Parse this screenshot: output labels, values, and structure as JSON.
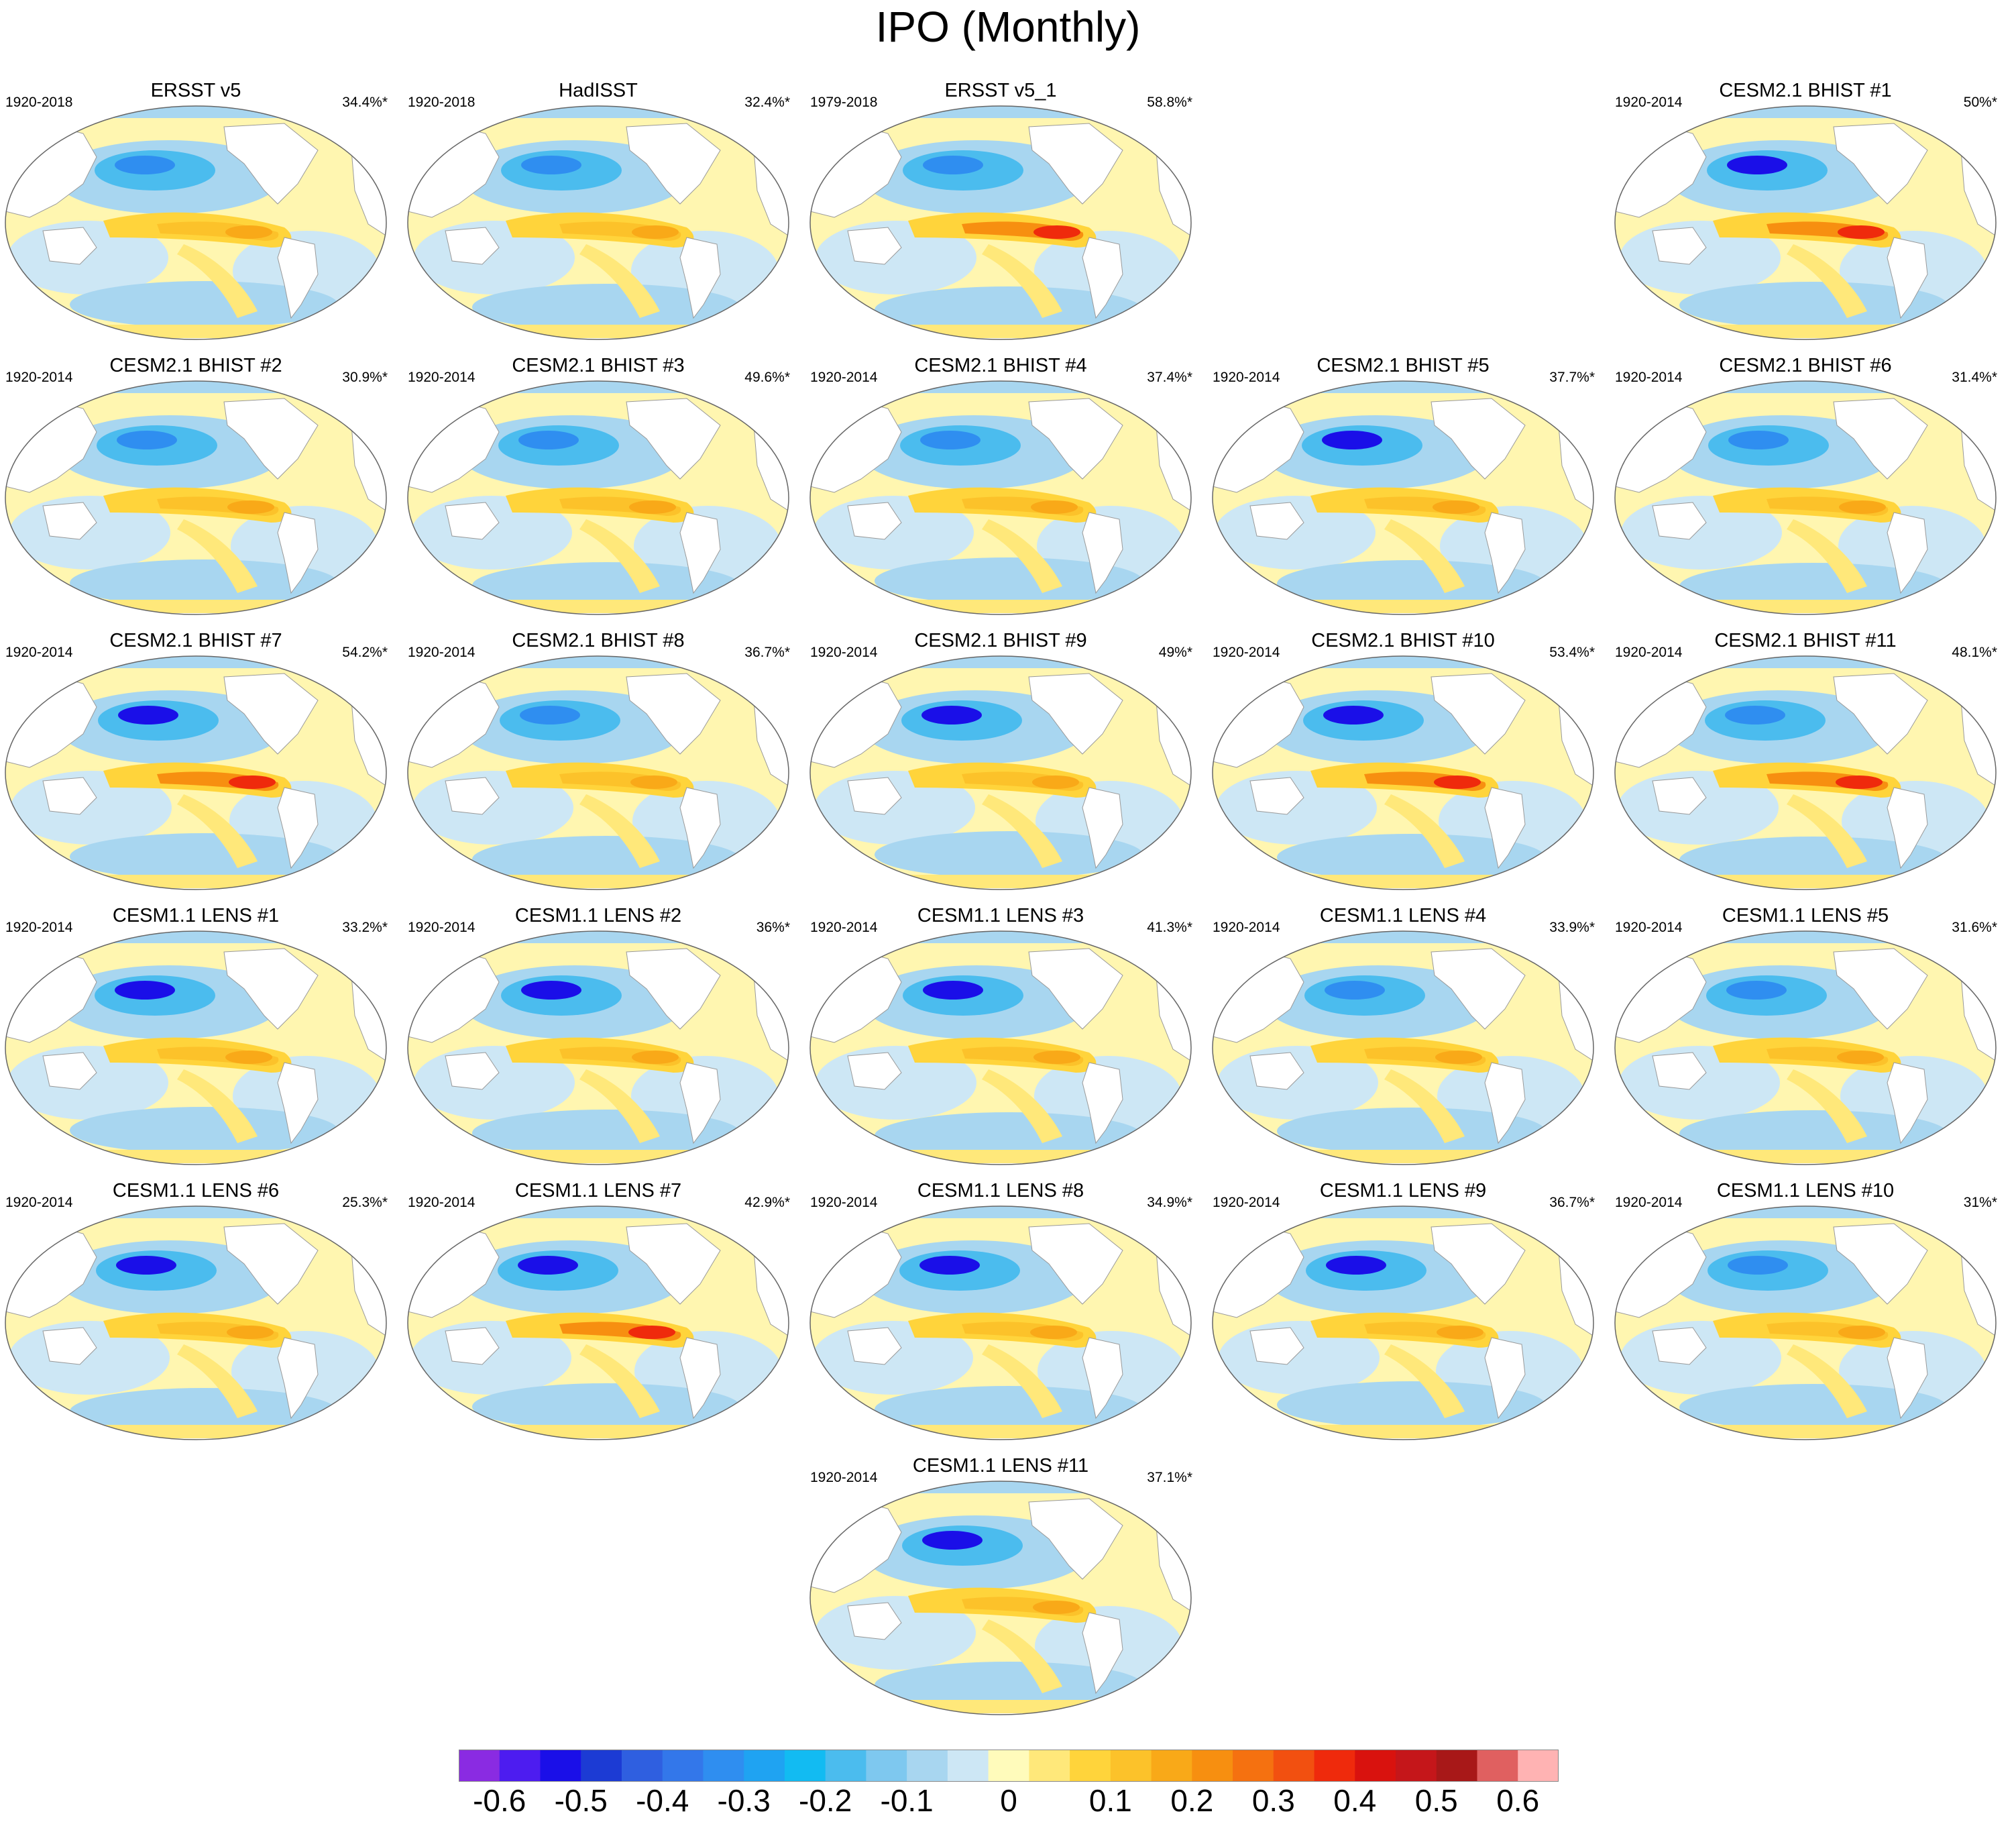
{
  "title": "IPO (Monthly)",
  "panels": [
    {
      "title": "ERSST v5",
      "range": "1920-2018",
      "pct": "34.4%*"
    },
    {
      "title": "HadISST",
      "range": "1920-2018",
      "pct": "32.4%*"
    },
    {
      "title": "ERSST v5_1",
      "range": "1979-2018",
      "pct": "58.8%*"
    },
    {
      "title": "CESM2.1 BHIST #1",
      "range": "1920-2014",
      "pct": "50%*"
    },
    {
      "title": "CESM2.1 BHIST #2",
      "range": "1920-2014",
      "pct": "30.9%*"
    },
    {
      "title": "CESM2.1 BHIST #3",
      "range": "1920-2014",
      "pct": "49.6%*"
    },
    {
      "title": "CESM2.1 BHIST #4",
      "range": "1920-2014",
      "pct": "37.4%*"
    },
    {
      "title": "CESM2.1 BHIST #5",
      "range": "1920-2014",
      "pct": "37.7%*"
    },
    {
      "title": "CESM2.1 BHIST #6",
      "range": "1920-2014",
      "pct": "31.4%*"
    },
    {
      "title": "CESM2.1 BHIST #7",
      "range": "1920-2014",
      "pct": "54.2%*"
    },
    {
      "title": "CESM2.1 BHIST #8",
      "range": "1920-2014",
      "pct": "36.7%*"
    },
    {
      "title": "CESM2.1 BHIST #9",
      "range": "1920-2014",
      "pct": "49%*"
    },
    {
      "title": "CESM2.1 BHIST #10",
      "range": "1920-2014",
      "pct": "53.4%*"
    },
    {
      "title": "CESM2.1 BHIST #11",
      "range": "1920-2014",
      "pct": "48.1%*"
    },
    {
      "title": "CESM1.1 LENS #1",
      "range": "1920-2014",
      "pct": "33.2%*"
    },
    {
      "title": "CESM1.1 LENS #2",
      "range": "1920-2014",
      "pct": "36%*"
    },
    {
      "title": "CESM1.1 LENS #3",
      "range": "1920-2014",
      "pct": "41.3%*"
    },
    {
      "title": "CESM1.1 LENS #4",
      "range": "1920-2014",
      "pct": "33.9%*"
    },
    {
      "title": "CESM1.1 LENS #5",
      "range": "1920-2014",
      "pct": "31.6%*"
    },
    {
      "title": "CESM1.1 LENS #6",
      "range": "1920-2014",
      "pct": "25.3%*"
    },
    {
      "title": "CESM1.1 LENS #7",
      "range": "1920-2014",
      "pct": "42.9%*"
    },
    {
      "title": "CESM1.1 LENS #8",
      "range": "1920-2014",
      "pct": "34.9%*"
    },
    {
      "title": "CESM1.1 LENS #9",
      "range": "1920-2014",
      "pct": "36.7%*"
    },
    {
      "title": "CESM1.1 LENS #10",
      "range": "1920-2014",
      "pct": "31%*"
    },
    {
      "title": "CESM1.1 LENS #11",
      "range": "1920-2014",
      "pct": "37.1%*"
    }
  ],
  "colorbar": {
    "colors": [
      "#8a2be2",
      "#4d1cf0",
      "#1a0fe8",
      "#1c3bd4",
      "#2f5fe0",
      "#3377ea",
      "#2f8ef0",
      "#1fa3f2",
      "#12bbf2",
      "#4bbcee",
      "#7ec8ef",
      "#a8d6f0",
      "#cde7f5",
      "#fffbbb",
      "#ffe87a",
      "#ffd43b",
      "#fcc22a",
      "#f9a918",
      "#f78f10",
      "#f57110",
      "#f25010",
      "#ef2a0c",
      "#d9120e",
      "#c5161a",
      "#a81818",
      "#e06060",
      "#ffb3b3"
    ],
    "labels": [
      "-0.6",
      "-0.5",
      "-0.4",
      "-0.3",
      "-0.2",
      "-0.1",
      "0",
      "0.1",
      "0.2",
      "0.3",
      "0.4",
      "0.5",
      "0.6"
    ]
  }
}
